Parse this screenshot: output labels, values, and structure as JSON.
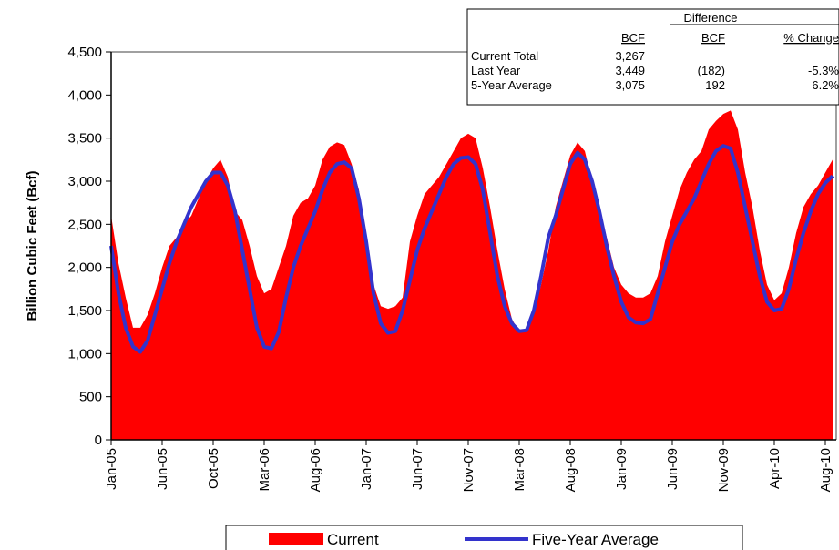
{
  "chart_data": {
    "type": "area_line",
    "y_label": "Billion Cubic Feet  (Bcf)",
    "ylim": [
      0,
      4500
    ],
    "yticks": [
      0,
      500,
      {
        "value": 1000,
        "label": "1,000"
      },
      {
        "value": 1500,
        "label": "1,500"
      },
      {
        "value": 2000,
        "label": "2,000"
      },
      {
        "value": 2500,
        "label": "2,500"
      },
      {
        "value": 3000,
        "label": "3,000"
      },
      {
        "value": 3500,
        "label": "3,500"
      },
      {
        "value": 4000,
        "label": "4,000"
      },
      {
        "value": 4500,
        "label": "4,500"
      }
    ],
    "categories": [
      "Jan-05",
      null,
      null,
      null,
      null,
      null,
      null,
      "Jun-05",
      null,
      null,
      null,
      null,
      null,
      null,
      "Oct-05",
      null,
      null,
      null,
      null,
      null,
      null,
      "Mar-06",
      null,
      null,
      null,
      null,
      null,
      null,
      "Aug-06",
      null,
      null,
      null,
      null,
      null,
      null,
      "Jan-07",
      null,
      null,
      null,
      null,
      null,
      null,
      "Jun-07",
      null,
      null,
      null,
      null,
      null,
      null,
      "Nov-07",
      null,
      null,
      null,
      null,
      null,
      null,
      "Mar-08",
      null,
      null,
      null,
      null,
      null,
      null,
      "Aug-08",
      null,
      null,
      null,
      null,
      null,
      null,
      "Jan-09",
      null,
      null,
      null,
      null,
      null,
      null,
      "Jun-09",
      null,
      null,
      null,
      null,
      null,
      null,
      "Nov-09",
      null,
      null,
      null,
      null,
      null,
      null,
      "Apr-10",
      null,
      null,
      null,
      null,
      null,
      null,
      "Aug-10",
      null
    ],
    "series": [
      {
        "name": "Current",
        "color": "#ff0000",
        "kind": "area",
        "values": [
          2600,
          2050,
          1650,
          1300,
          1300,
          1450,
          1700,
          2000,
          2250,
          2350,
          2500,
          2600,
          2800,
          3000,
          3150,
          3250,
          3050,
          2650,
          2550,
          2250,
          1900,
          1700,
          1750,
          2000,
          2250,
          2600,
          2750,
          2800,
          2950,
          3250,
          3400,
          3450,
          3420,
          3200,
          2900,
          2300,
          1800,
          1550,
          1520,
          1550,
          1650,
          2300,
          2600,
          2850,
          2950,
          3050,
          3200,
          3350,
          3500,
          3550,
          3500,
          3150,
          2700,
          2200,
          1750,
          1400,
          1250,
          1260,
          1450,
          1800,
          2200,
          2700,
          3000,
          3300,
          3450,
          3350,
          3000,
          2700,
          2350,
          2000,
          1800,
          1700,
          1650,
          1650,
          1700,
          1900,
          2300,
          2600,
          2900,
          3100,
          3250,
          3350,
          3600,
          3700,
          3780,
          3820,
          3600,
          3100,
          2700,
          2200,
          1800,
          1620,
          1700,
          2000,
          2400,
          2700,
          2850,
          2950,
          3100,
          3250
        ]
      },
      {
        "name": "Five-Year Average",
        "color": "#3333cc",
        "kind": "line",
        "values": [
          2250,
          1700,
          1300,
          1080,
          1020,
          1150,
          1450,
          1750,
          2050,
          2300,
          2500,
          2700,
          2850,
          3000,
          3100,
          3100,
          2950,
          2650,
          2200,
          1750,
          1300,
          1080,
          1060,
          1250,
          1650,
          2000,
          2250,
          2450,
          2650,
          2900,
          3100,
          3200,
          3220,
          3150,
          2800,
          2300,
          1700,
          1350,
          1240,
          1260,
          1500,
          1850,
          2200,
          2450,
          2650,
          2850,
          3050,
          3200,
          3270,
          3280,
          3200,
          2900,
          2400,
          1900,
          1550,
          1350,
          1260,
          1270,
          1500,
          1900,
          2350,
          2600,
          2900,
          3200,
          3330,
          3250,
          3000,
          2650,
          2250,
          1900,
          1600,
          1420,
          1360,
          1350,
          1400,
          1700,
          2000,
          2300,
          2500,
          2650,
          2800,
          3000,
          3200,
          3350,
          3410,
          3380,
          3100,
          2700,
          2300,
          1900,
          1600,
          1500,
          1520,
          1750,
          2100,
          2400,
          2650,
          2850,
          2980,
          3060
        ]
      }
    ],
    "summary": {
      "header": "Difference",
      "columns": [
        "BCF",
        "BCF",
        "% Change"
      ],
      "rows": [
        [
          "Current Total",
          "3,267"
        ],
        [
          "Last Year",
          "3,449",
          "(182)",
          "-5.3%"
        ],
        [
          "5-Year Average",
          "3,075",
          "192",
          "6.2%"
        ]
      ]
    }
  }
}
